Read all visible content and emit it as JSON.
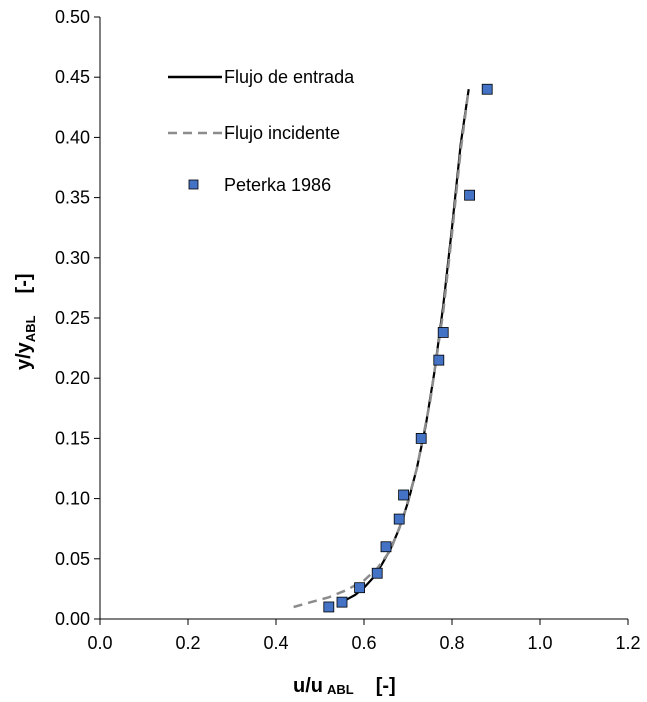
{
  "chart_data": {
    "type": "line",
    "xlabel": {
      "main": "u/u",
      "sub": "ABL",
      "unit": "[-]"
    },
    "ylabel": {
      "main": "y/y",
      "sub": "ABL",
      "unit": "[-]"
    },
    "xlim": [
      0.0,
      1.2
    ],
    "ylim": [
      0.0,
      0.5
    ],
    "x_ticks": [
      "0.0",
      "0.2",
      "0.4",
      "0.6",
      "0.8",
      "1.0",
      "1.2"
    ],
    "y_ticks": [
      "0.00",
      "0.05",
      "0.10",
      "0.15",
      "0.20",
      "0.25",
      "0.30",
      "0.35",
      "0.40",
      "0.45",
      "0.50"
    ],
    "grid": false,
    "legend_position": "top-left",
    "series": [
      {
        "name": "Flujo de entrada",
        "style": "solid",
        "color": "#000000",
        "x": [
          0.545,
          0.56,
          0.58,
          0.6,
          0.62,
          0.64,
          0.66,
          0.68,
          0.7,
          0.72,
          0.74,
          0.76,
          0.78,
          0.8,
          0.82,
          0.838
        ],
        "y": [
          0.012,
          0.016,
          0.02,
          0.026,
          0.034,
          0.045,
          0.058,
          0.075,
          0.097,
          0.125,
          0.16,
          0.205,
          0.26,
          0.325,
          0.395,
          0.44
        ]
      },
      {
        "name": "Flujo incidente",
        "style": "dashed",
        "color": "#8c8c8c",
        "x": [
          0.44,
          0.48,
          0.52,
          0.56,
          0.6,
          0.63,
          0.66,
          0.69,
          0.72,
          0.75,
          0.78,
          0.8,
          0.82,
          0.838
        ],
        "y": [
          0.01,
          0.014,
          0.018,
          0.024,
          0.032,
          0.042,
          0.057,
          0.085,
          0.125,
          0.18,
          0.255,
          0.32,
          0.39,
          0.44
        ]
      },
      {
        "name": "Peterka 1986",
        "style": "markers",
        "color": "#4472c4",
        "x": [
          0.52,
          0.55,
          0.59,
          0.63,
          0.65,
          0.68,
          0.69,
          0.73,
          0.77,
          0.78,
          0.84,
          0.88
        ],
        "y": [
          0.01,
          0.014,
          0.026,
          0.038,
          0.06,
          0.083,
          0.103,
          0.15,
          0.215,
          0.238,
          0.352,
          0.44
        ]
      }
    ]
  }
}
